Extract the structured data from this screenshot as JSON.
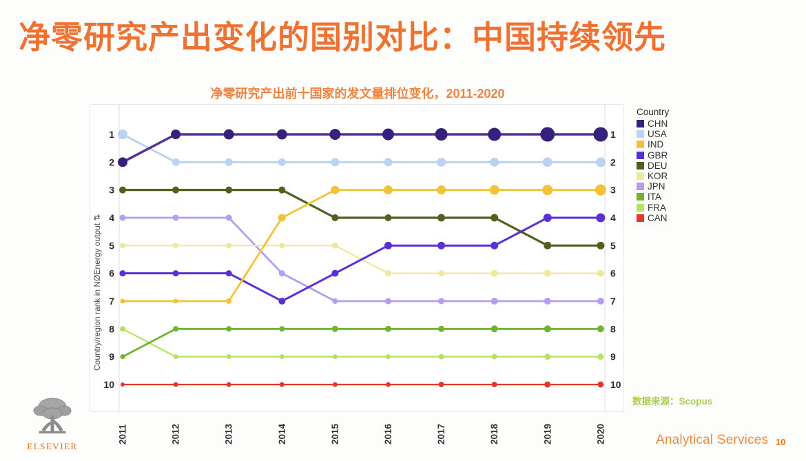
{
  "title": {
    "text": "净零研究产出变化的国别对比：中国持续领先",
    "color": "#ee7231"
  },
  "subtitle": {
    "text": "净零研究产出前十国家的发文量排位变化，2011-2020",
    "color": "#ef8441"
  },
  "chart_data": {
    "type": "line",
    "subtype": "rank-bump-chart",
    "title": "净零研究产出前十国家的发文量排位变化，2011-2020",
    "x": [
      "2011",
      "2012",
      "2013",
      "2014",
      "2015",
      "2016",
      "2017",
      "2018",
      "2019",
      "2020"
    ],
    "ylabel": "Country/region rank in NØEnergy output ⇅",
    "xlabel": "",
    "y_ticks": [
      "1",
      "2",
      "3",
      "4",
      "5",
      "6",
      "7",
      "8",
      "9",
      "10"
    ],
    "ylim": [
      1,
      10
    ],
    "y_inverted": true,
    "grid": false,
    "legend_title": "Country",
    "legend_position": "right",
    "marker_note": "marker size grows with publication volume",
    "series": [
      {
        "name": "CHN",
        "color": "#513396",
        "dot_color": "#37217d",
        "line_width": 3.5,
        "ranks": [
          2,
          1,
          1,
          1,
          1,
          1,
          1,
          1,
          1,
          1
        ],
        "sizes": [
          7,
          7,
          7.5,
          7.5,
          8,
          8.5,
          9,
          9.5,
          10.5,
          10.5
        ]
      },
      {
        "name": "USA",
        "color": "#b9d3f0",
        "dot_color": "#b9d3f0",
        "line_width": 3,
        "ranks": [
          1,
          2,
          2,
          2,
          2,
          2,
          2,
          2,
          2,
          2
        ],
        "sizes": [
          7,
          5.5,
          5.5,
          5.5,
          6,
          6,
          6.5,
          6.5,
          7,
          7
        ]
      },
      {
        "name": "IND",
        "color": "#f2c237",
        "dot_color": "#f2c237",
        "line_width": 2.8,
        "ranks": [
          7,
          7,
          7,
          4,
          3,
          3,
          3,
          3,
          3,
          3
        ],
        "sizes": [
          3.5,
          3.5,
          4,
          5.5,
          6,
          6.5,
          6.5,
          7,
          7.5,
          8
        ]
      },
      {
        "name": "GBR",
        "color": "#5a2fd6",
        "dot_color": "#5a2fd6",
        "line_width": 3,
        "ranks": [
          6,
          6,
          6,
          7,
          6,
          5,
          5,
          5,
          4,
          4
        ],
        "sizes": [
          4.5,
          4.5,
          4.5,
          5,
          5,
          5.5,
          5.5,
          5.5,
          6,
          6.5
        ]
      },
      {
        "name": "DEU",
        "color": "#4f611d",
        "dot_color": "#4f611d",
        "line_width": 3.2,
        "ranks": [
          3,
          3,
          3,
          3,
          4,
          4,
          4,
          4,
          5,
          5
        ],
        "sizes": [
          5,
          5,
          5,
          5,
          5,
          5,
          5.5,
          5.5,
          5.5,
          5.5
        ]
      },
      {
        "name": "KOR",
        "color": "#efe79c",
        "dot_color": "#efe79c",
        "line_width": 2.2,
        "ranks": [
          5,
          5,
          5,
          5,
          5,
          6,
          6,
          6,
          6,
          6
        ],
        "sizes": [
          4,
          4,
          4,
          4,
          4.5,
          4.5,
          4.5,
          5,
          5,
          5
        ]
      },
      {
        "name": "JPN",
        "color": "#b59df2",
        "dot_color": "#b59df2",
        "line_width": 2.8,
        "ranks": [
          4,
          4,
          4,
          6,
          7,
          7,
          7,
          7,
          7,
          7
        ],
        "sizes": [
          4.5,
          4.5,
          4.5,
          4.5,
          4,
          4.5,
          4.5,
          5,
          5,
          5
        ]
      },
      {
        "name": "ITA",
        "color": "#70b42e",
        "dot_color": "#70b42e",
        "line_width": 2.8,
        "ranks": [
          9,
          8,
          8,
          8,
          8,
          8,
          8,
          8,
          8,
          8
        ],
        "sizes": [
          3.5,
          4,
          4,
          4,
          4.5,
          4.5,
          4.5,
          5,
          5,
          5
        ]
      },
      {
        "name": "FRA",
        "color": "#b5e263",
        "dot_color": "#b5e263",
        "line_width": 2.2,
        "ranks": [
          8,
          9,
          9,
          9,
          9,
          9,
          9,
          9,
          9,
          9
        ],
        "sizes": [
          4,
          3.5,
          3.5,
          3.5,
          3.5,
          3.5,
          4,
          4,
          4.5,
          4.5
        ]
      },
      {
        "name": "CAN",
        "color": "#e4372b",
        "dot_color": "#e4372b",
        "line_width": 2.2,
        "ranks": [
          10,
          10,
          10,
          10,
          10,
          10,
          10,
          10,
          10,
          10
        ],
        "sizes": [
          3,
          3.5,
          3.5,
          3.5,
          3.5,
          3.5,
          4,
          4,
          4.5,
          4.5
        ]
      }
    ]
  },
  "source_note": {
    "text": "数据来源：Scopus",
    "color": "#a9cf52"
  },
  "footer": {
    "brand": "ELSEVIER",
    "brand_color": "#e8702a",
    "service": "Analytical Services",
    "service_color": "#ef8a3d",
    "page_number": "10",
    "page_number_color": "#e87722"
  },
  "colors": {
    "accent_orange": "#ee7231",
    "axis_text": "#2b2b2b",
    "panel_border": "#e6e6e6"
  }
}
